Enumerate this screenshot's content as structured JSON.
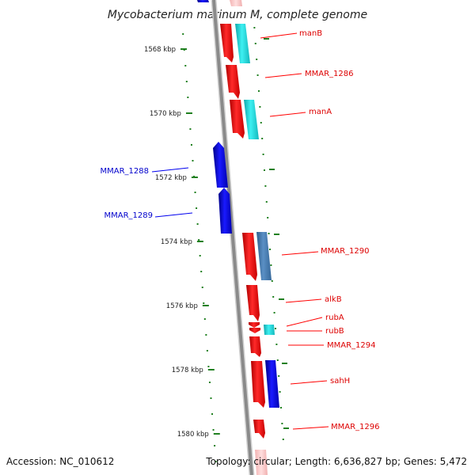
{
  "map": {
    "title": "Mycobacterium marinum M, complete genome",
    "accession": "Accession: NC_010612",
    "topology": "Topology: circular; Length: 6,636,827 bp; Genes: 5,472",
    "colors": {
      "forward": "#ff1a1a",
      "reverse": "#1010ee",
      "cyan": "#22d8dc",
      "steel": "#4a7fb0",
      "ruler_tick": "#208020",
      "backbone": "#909090"
    },
    "kbp_ticks": [
      {
        "label": "1568 kbp",
        "value": 1568
      },
      {
        "label": "1570 kbp",
        "value": 1570
      },
      {
        "label": "1572 kbp",
        "value": 1572
      },
      {
        "label": "1574 kbp",
        "value": 1574
      },
      {
        "label": "1576 kbp",
        "value": 1576
      },
      {
        "label": "1578 kbp",
        "value": 1578
      },
      {
        "label": "1580 kbp",
        "value": 1580
      }
    ],
    "genes": [
      {
        "name": "manB",
        "strand": "forward"
      },
      {
        "name": "MMAR_1286",
        "strand": "forward"
      },
      {
        "name": "manA",
        "strand": "forward"
      },
      {
        "name": "MMAR_1288",
        "strand": "reverse"
      },
      {
        "name": "MMAR_1289",
        "strand": "reverse"
      },
      {
        "name": "MMAR_1290",
        "strand": "forward"
      },
      {
        "name": "alkB",
        "strand": "forward"
      },
      {
        "name": "rubA",
        "strand": "forward"
      },
      {
        "name": "rubB",
        "strand": "forward"
      },
      {
        "name": "MMAR_1294",
        "strand": "forward"
      },
      {
        "name": "sahH",
        "strand": "forward"
      },
      {
        "name": "MMAR_1296",
        "strand": "forward"
      }
    ]
  }
}
